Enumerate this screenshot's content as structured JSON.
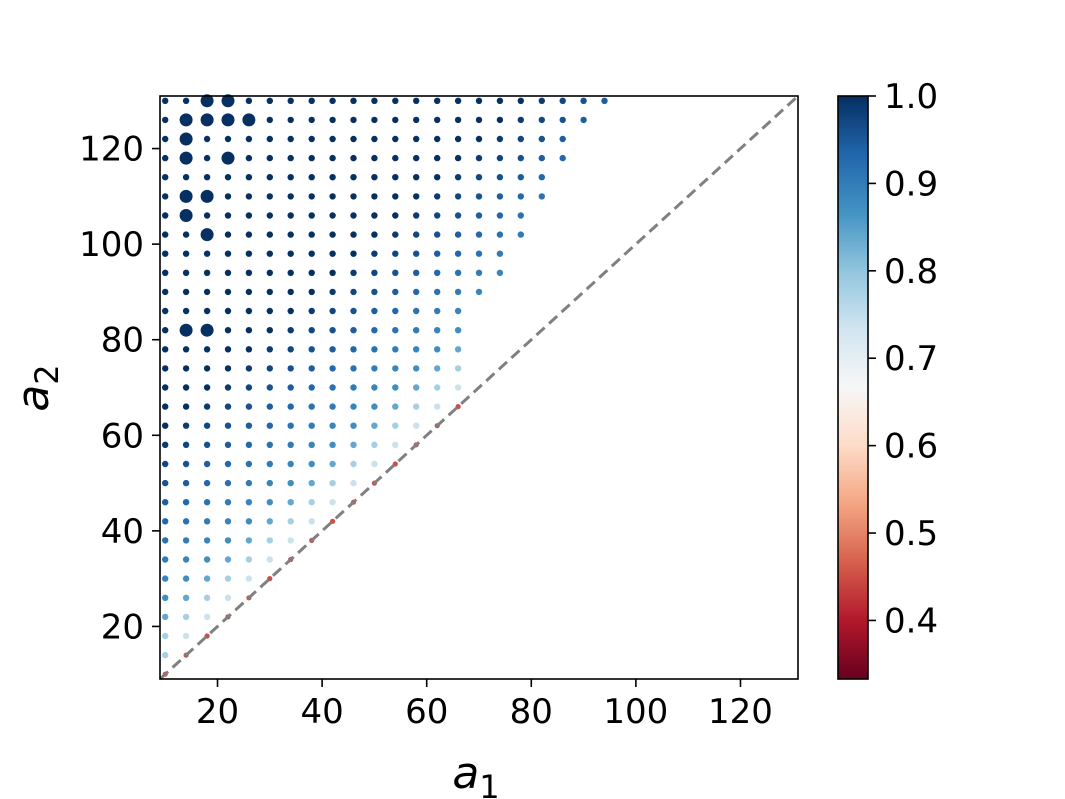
{
  "chart_data": {
    "type": "scatter",
    "title": "",
    "xlabel": "a",
    "xlabel_sub": "1",
    "ylabel": "a",
    "ylabel_sub": "2",
    "xlim": [
      9,
      131
    ],
    "ylim": [
      9,
      131
    ],
    "x_ticks": [
      20,
      40,
      60,
      80,
      100,
      120
    ],
    "y_ticks": [
      20,
      40,
      60,
      80,
      100,
      120
    ],
    "grid_step": 4,
    "grid_min": 10,
    "grid_max": 130,
    "row_extents": [
      {
        "y": 10,
        "x_max": 10
      },
      {
        "y": 14,
        "x_max": 14
      },
      {
        "y": 18,
        "x_max": 18
      },
      {
        "y": 22,
        "x_max": 22
      },
      {
        "y": 26,
        "x_max": 26
      },
      {
        "y": 30,
        "x_max": 30
      },
      {
        "y": 34,
        "x_max": 34
      },
      {
        "y": 38,
        "x_max": 38
      },
      {
        "y": 42,
        "x_max": 42
      },
      {
        "y": 46,
        "x_max": 46
      },
      {
        "y": 50,
        "x_max": 50
      },
      {
        "y": 54,
        "x_max": 54
      },
      {
        "y": 58,
        "x_max": 58
      },
      {
        "y": 62,
        "x_max": 62
      },
      {
        "y": 66,
        "x_max": 66
      },
      {
        "y": 70,
        "x_max": 66
      },
      {
        "y": 74,
        "x_max": 66
      },
      {
        "y": 78,
        "x_max": 66
      },
      {
        "y": 82,
        "x_max": 66
      },
      {
        "y": 86,
        "x_max": 66
      },
      {
        "y": 90,
        "x_max": 70
      },
      {
        "y": 94,
        "x_max": 74
      },
      {
        "y": 98,
        "x_max": 74
      },
      {
        "y": 102,
        "x_max": 78
      },
      {
        "y": 106,
        "x_max": 78
      },
      {
        "y": 110,
        "x_max": 82
      },
      {
        "y": 114,
        "x_max": 82
      },
      {
        "y": 118,
        "x_max": 86
      },
      {
        "y": 122,
        "x_max": 86
      },
      {
        "y": 126,
        "x_max": 90
      },
      {
        "y": 130,
        "x_max": 94
      }
    ],
    "diagonal_value": 0.45,
    "near_diagonal_values": [
      0.74,
      0.78,
      0.84
    ],
    "interior_value_range": [
      0.86,
      1.0
    ],
    "large_points": [
      {
        "x": 18,
        "y": 130
      },
      {
        "x": 22,
        "y": 130
      },
      {
        "x": 14,
        "y": 126
      },
      {
        "x": 18,
        "y": 126
      },
      {
        "x": 22,
        "y": 126
      },
      {
        "x": 26,
        "y": 126
      },
      {
        "x": 14,
        "y": 122
      },
      {
        "x": 14,
        "y": 118
      },
      {
        "x": 22,
        "y": 118
      },
      {
        "x": 14,
        "y": 110
      },
      {
        "x": 18,
        "y": 110
      },
      {
        "x": 14,
        "y": 106
      },
      {
        "x": 18,
        "y": 102
      },
      {
        "x": 14,
        "y": 82
      },
      {
        "x": 18,
        "y": 82
      }
    ],
    "reference_line": {
      "style": "dashed",
      "color": "#808080",
      "from": [
        9,
        9
      ],
      "to": [
        131,
        131
      ]
    },
    "colorbar": {
      "colormap": "RdBu",
      "vmin": 0.333,
      "vmax": 1.0,
      "ticks": [
        "0.4",
        "0.5",
        "0.6",
        "0.7",
        "0.8",
        "0.9",
        "1.0"
      ],
      "tick_values": [
        0.4,
        0.5,
        0.6,
        0.7,
        0.8,
        0.9,
        1.0
      ]
    },
    "grid": false,
    "legend": "none"
  }
}
